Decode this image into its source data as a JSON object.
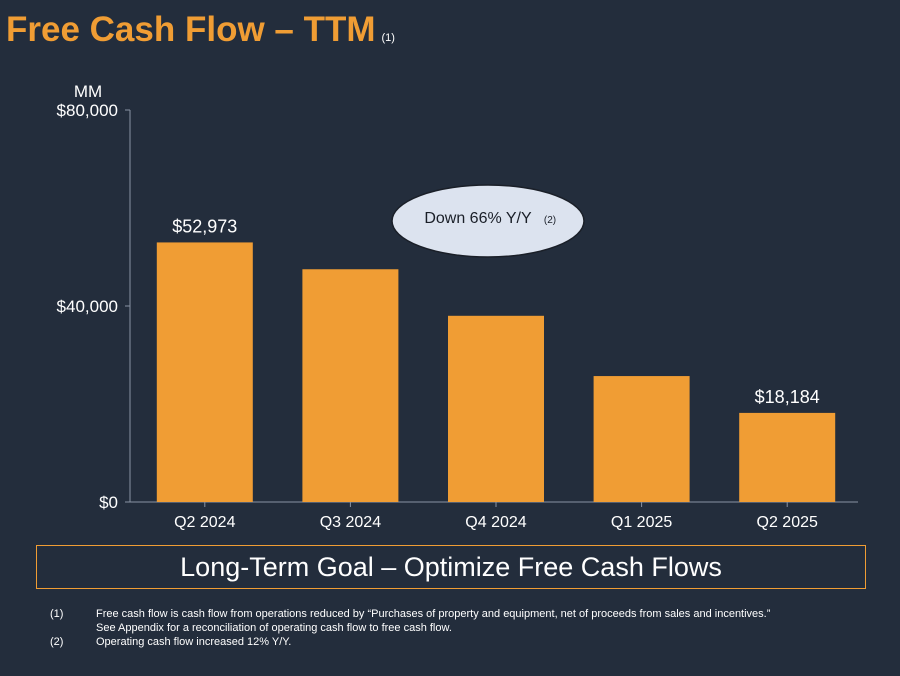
{
  "title": "Free Cash Flow – TTM",
  "title_footnote": "(1)",
  "callout": {
    "text": "Down 66% Y/Y",
    "footnote": "(2)"
  },
  "goal_banner": "Long-Term Goal – Optimize Free Cash Flows",
  "footnotes": [
    {
      "num": "(1)",
      "lines": [
        "Free cash flow is cash flow from operations reduced by “Purchases of property and equipment, net of proceeds from sales and incentives.”",
        "See Appendix for a reconciliation of operating cash flow to free cash flow."
      ]
    },
    {
      "num": "(2)",
      "lines": [
        "Operating cash flow increased 12% Y/Y."
      ]
    }
  ],
  "colors": {
    "bar": "#f09d34",
    "background": "#232d3c",
    "callout_fill": "#dce3ef"
  },
  "chart_data": {
    "type": "bar",
    "title": "Free Cash Flow – TTM",
    "unit_label": "MM",
    "categories": [
      "Q2 2024",
      "Q3 2024",
      "Q4 2024",
      "Q1 2025",
      "Q2 2025"
    ],
    "values": [
      52973,
      47500,
      38000,
      25700,
      18184
    ],
    "data_labels": [
      "$52,973",
      "",
      "",
      "",
      "$18,184"
    ],
    "ylim": [
      0,
      80000
    ],
    "yticks": [
      0,
      40000,
      80000
    ],
    "ytick_labels": [
      "$0",
      "$40,000",
      "$80,000"
    ],
    "xlabel": "",
    "ylabel": "",
    "grid": false,
    "legend": "none"
  }
}
